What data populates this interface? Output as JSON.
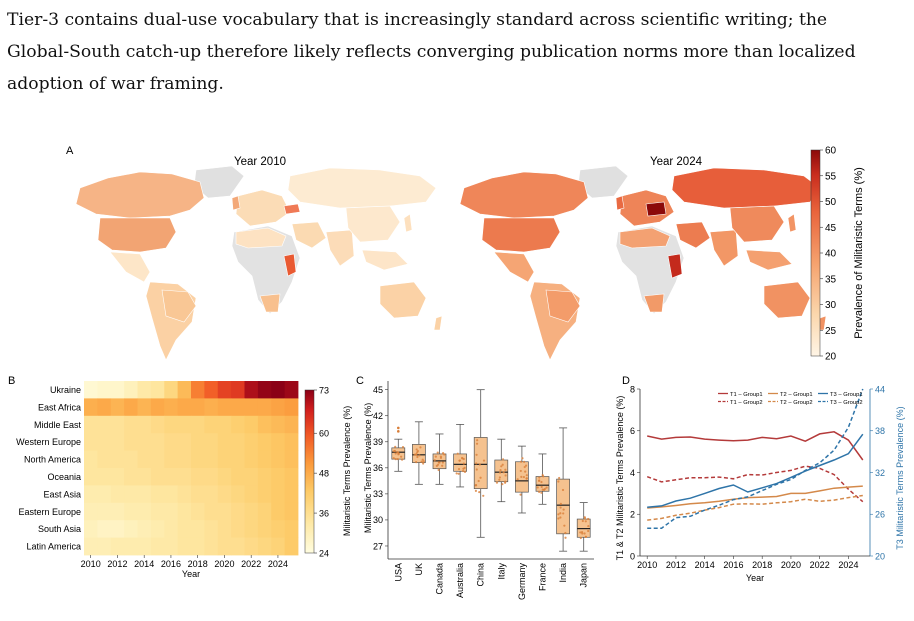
{
  "paragraph": {
    "line1": "Tier-3 contains dual-use vocabulary that is increasingly standard across scientific writing; the",
    "line2": "Global-South catch-up therefore likely reflects converging publication norms more than localized",
    "line3": "adoption of war framing."
  },
  "caption_partial": "",
  "chart_data": [
    {
      "panel": "A",
      "type": "choropleth-map",
      "maps": [
        {
          "title": "Year 2010"
        },
        {
          "title": "Year 2024"
        }
      ],
      "colorbar": {
        "label": "Prevalence of Militaristic Terms (%)",
        "ticks": [
          20,
          25,
          30,
          35,
          40,
          45,
          50,
          55,
          60
        ],
        "range": [
          20,
          60
        ]
      }
    },
    {
      "panel": "B",
      "type": "heatmap",
      "rows": [
        "Ukraine",
        "East Africa",
        "Middle East",
        "Western Europe",
        "North America",
        "Oceania",
        "East Asia",
        "Eastern Europe",
        "South Asia",
        "Latin America"
      ],
      "x": [
        2010,
        2011,
        2012,
        2013,
        2014,
        2015,
        2016,
        2017,
        2018,
        2019,
        2020,
        2021,
        2022,
        2023,
        2024,
        2025
      ],
      "x_ticks": [
        2010,
        2012,
        2014,
        2016,
        2018,
        2020,
        2022,
        2024
      ],
      "xlabel": "Year",
      "values": [
        [
          26,
          27,
          27,
          29,
          32,
          33,
          37,
          43,
          52,
          56,
          60,
          61,
          69,
          72,
          73,
          71
        ],
        [
          45,
          46,
          44,
          46,
          44,
          46,
          45,
          46,
          46,
          45,
          46,
          46,
          46,
          46,
          47,
          48
        ],
        [
          34,
          34,
          34,
          35,
          35,
          36,
          37,
          37,
          37,
          38,
          38,
          39,
          40,
          42,
          43,
          44
        ],
        [
          34,
          34,
          34,
          35,
          35,
          35,
          36,
          36,
          37,
          37,
          38,
          38,
          39,
          40,
          41,
          42
        ],
        [
          33,
          34,
          34,
          34,
          35,
          35,
          36,
          36,
          37,
          37,
          38,
          38,
          39,
          40,
          41,
          42
        ],
        [
          33,
          33,
          33,
          34,
          34,
          35,
          35,
          35,
          36,
          36,
          37,
          38,
          38,
          39,
          40,
          41
        ],
        [
          31,
          31,
          32,
          32,
          32,
          33,
          33,
          34,
          35,
          35,
          36,
          37,
          38,
          39,
          40,
          41
        ],
        [
          30,
          30,
          30,
          31,
          31,
          32,
          32,
          33,
          34,
          35,
          35,
          36,
          37,
          38,
          40,
          41
        ],
        [
          29,
          28,
          28,
          29,
          30,
          31,
          32,
          33,
          33,
          34,
          35,
          36,
          37,
          38,
          39,
          40
        ],
        [
          30,
          30,
          31,
          31,
          31,
          32,
          32,
          33,
          33,
          34,
          35,
          35,
          36,
          37,
          38,
          40
        ]
      ],
      "colorbar": {
        "label": "Militaristic Terms Prevalence (%)",
        "ticks": [
          24,
          36,
          48,
          60,
          73
        ],
        "range": [
          24,
          73
        ]
      }
    },
    {
      "panel": "C",
      "type": "box",
      "categories": [
        "USA",
        "UK",
        "Canada",
        "Australia",
        "China",
        "Italy",
        "Germany",
        "France",
        "India",
        "Japan"
      ],
      "boxes": [
        {
          "min": 35.6,
          "q1": 37.0,
          "median": 37.8,
          "q3": 38.3,
          "max": 39.3,
          "fliers": [
            40.2,
            40.6
          ]
        },
        {
          "min": 34.1,
          "q1": 36.6,
          "median": 37.5,
          "q3": 38.7,
          "max": 41.3,
          "fliers": []
        },
        {
          "min": 34.1,
          "q1": 35.9,
          "median": 36.8,
          "q3": 37.6,
          "max": 39.9,
          "fliers": []
        },
        {
          "min": 33.8,
          "q1": 35.6,
          "median": 36.4,
          "q3": 37.6,
          "max": 41.0,
          "fliers": []
        },
        {
          "min": 28.0,
          "q1": 33.6,
          "median": 36.4,
          "q3": 39.5,
          "max": 45.0,
          "fliers": []
        },
        {
          "min": 32.1,
          "q1": 34.4,
          "median": 35.5,
          "q3": 36.9,
          "max": 39.3,
          "fliers": []
        },
        {
          "min": 30.8,
          "q1": 33.2,
          "median": 34.5,
          "q3": 36.7,
          "max": 38.5,
          "fliers": []
        },
        {
          "min": 31.8,
          "q1": 33.3,
          "median": 34.0,
          "q3": 35.0,
          "max": 37.6,
          "fliers": []
        },
        {
          "min": 26.4,
          "q1": 28.4,
          "median": 31.7,
          "q3": 34.7,
          "max": 40.6,
          "fliers": []
        },
        {
          "min": 26.4,
          "q1": 28.0,
          "median": 29.0,
          "q3": 30.1,
          "max": 32.0,
          "fliers": []
        }
      ],
      "ylabel": "Militaristic Terms Prevalence (%)",
      "y_ticks": [
        27,
        30,
        33,
        36,
        39,
        42,
        45
      ],
      "ylim": [
        25.5,
        46
      ]
    },
    {
      "panel": "D",
      "type": "line",
      "x": [
        2010,
        2011,
        2012,
        2013,
        2014,
        2015,
        2016,
        2017,
        2018,
        2019,
        2020,
        2021,
        2022,
        2023,
        2024,
        2025
      ],
      "x_ticks": [
        2010,
        2012,
        2014,
        2016,
        2018,
        2020,
        2022,
        2024
      ],
      "xlabel": "Year",
      "ylabel_left": "T1 & T2 Militaristic Terms Prevalence (%)",
      "ylabel_right": "T3 Militaristic Terms Prevalence (%)",
      "y_left_ticks": [
        0,
        2,
        4,
        6,
        8
      ],
      "y_left_lim": [
        0,
        8
      ],
      "y_right_ticks": [
        20,
        26,
        32,
        38,
        44
      ],
      "y_right_lim": [
        20,
        44
      ],
      "series": [
        {
          "name": "T1 – Group1",
          "axis": "left",
          "color": "#b43a3a",
          "dash": "solid",
          "values": [
            5.75,
            5.6,
            5.68,
            5.7,
            5.6,
            5.55,
            5.52,
            5.55,
            5.68,
            5.62,
            5.75,
            5.5,
            5.85,
            5.95,
            5.55,
            4.6
          ]
        },
        {
          "name": "T1 – Group2",
          "axis": "left",
          "color": "#b43a3a",
          "dash": "dashed",
          "values": [
            3.8,
            3.55,
            3.65,
            3.75,
            3.75,
            3.78,
            3.7,
            3.9,
            3.88,
            4.0,
            4.1,
            4.3,
            4.2,
            3.9,
            3.2,
            2.6
          ]
        },
        {
          "name": "T2 – Group1",
          "axis": "left",
          "color": "#d4894a",
          "dash": "solid",
          "values": [
            2.3,
            2.35,
            2.42,
            2.5,
            2.55,
            2.62,
            2.72,
            2.8,
            2.82,
            2.85,
            3.0,
            3.0,
            3.12,
            3.25,
            3.3,
            3.35
          ]
        },
        {
          "name": "T2 – Group2",
          "axis": "left",
          "color": "#d4894a",
          "dash": "dashed",
          "values": [
            1.72,
            1.8,
            1.95,
            2.05,
            2.2,
            2.32,
            2.48,
            2.5,
            2.48,
            2.55,
            2.6,
            2.72,
            2.62,
            2.68,
            2.8,
            2.9
          ]
        },
        {
          "name": "T3 – Group1",
          "axis": "right",
          "color": "#2e74a8",
          "dash": "solid",
          "values": [
            27.0,
            27.2,
            27.9,
            28.3,
            29.0,
            29.7,
            30.2,
            29.2,
            29.8,
            30.4,
            31.3,
            32.2,
            33.0,
            33.8,
            34.7,
            37.5
          ]
        },
        {
          "name": "T3 – Group2",
          "axis": "right",
          "color": "#2e74a8",
          "dash": "dashed",
          "values": [
            24.0,
            24.0,
            25.5,
            25.7,
            26.6,
            27.3,
            28.1,
            28.5,
            29.4,
            30.3,
            31.0,
            32.3,
            33.4,
            35.2,
            38.5,
            44.0
          ]
        }
      ],
      "legend": "top-right"
    }
  ],
  "panel_labels": {
    "a": "A",
    "b": "B",
    "c": "C",
    "d": "D"
  },
  "colors": {
    "map_scale": [
      "#fff5e6",
      "#fbd7ad",
      "#f5a26e",
      "#e9643c",
      "#c92d1e",
      "#8c0a0a"
    ],
    "heat_scale": [
      "#fffde0",
      "#fee9a6",
      "#fdca66",
      "#fb9a3c",
      "#f15a26",
      "#d01e1e",
      "#8b0016"
    ],
    "box_fill": "#f5c28f",
    "box_edge": "#555555",
    "dot": "#d97f3a"
  }
}
